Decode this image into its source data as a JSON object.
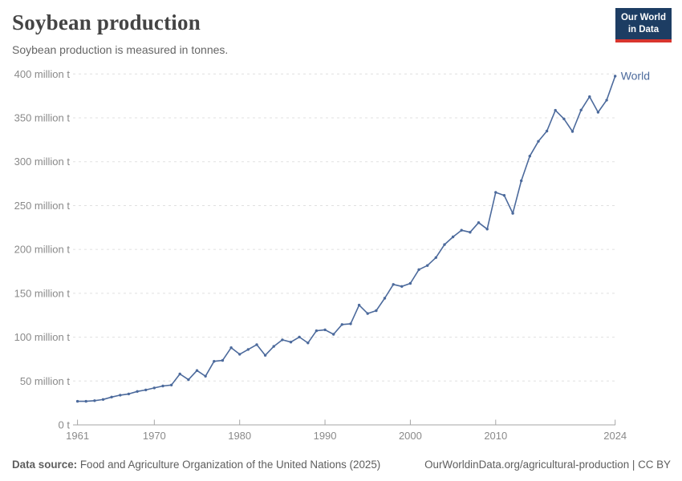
{
  "header": {
    "title": "Soybean production",
    "subtitle": "Soybean production is measured in tonnes.",
    "logo": {
      "line1": "Our World",
      "line2": "in Data"
    }
  },
  "footer": {
    "source_label": "Data source:",
    "source_text": " Food and Agriculture Organization of the United Nations (2025)",
    "link_text": "OurWorldinData.org/agricultural-production | CC BY"
  },
  "colors": {
    "series_blue": "#4C6A9C",
    "grid": "#e0e0e0",
    "axis": "#a6a6a6",
    "tick_text": "#8a8a8a",
    "logo_navy": "#1d3d63",
    "logo_red": "#d8352e"
  },
  "chart_data": {
    "type": "line",
    "title": "Soybean production",
    "subtitle": "Soybean production is measured in tonnes.",
    "xlabel": "",
    "ylabel": "",
    "values_unit": "million tonnes",
    "xlim": [
      1961,
      2024
    ],
    "ylim": [
      0,
      400
    ],
    "grid": "horizontal-dashed",
    "legend_position": "end-of-line-label",
    "x_ticks": [
      1961,
      1970,
      1980,
      1990,
      2000,
      2010,
      2024
    ],
    "y_ticks": [
      0,
      50,
      100,
      150,
      200,
      250,
      300,
      350,
      400
    ],
    "y_tick_labels": [
      "0 t",
      "50 million t",
      "100 million t",
      "150 million t",
      "200 million t",
      "250 million t",
      "300 million t",
      "350 million t",
      "400 million t"
    ],
    "x": [
      1961,
      1962,
      1963,
      1964,
      1965,
      1966,
      1967,
      1968,
      1969,
      1970,
      1971,
      1972,
      1973,
      1974,
      1975,
      1976,
      1977,
      1978,
      1979,
      1980,
      1981,
      1982,
      1983,
      1984,
      1985,
      1986,
      1987,
      1988,
      1989,
      1990,
      1991,
      1992,
      1993,
      1994,
      1995,
      1996,
      1997,
      1998,
      1999,
      2000,
      2001,
      2002,
      2003,
      2004,
      2005,
      2006,
      2007,
      2008,
      2009,
      2010,
      2011,
      2012,
      2013,
      2014,
      2015,
      2016,
      2017,
      2018,
      2019,
      2020,
      2021,
      2022,
      2023,
      2024
    ],
    "series": [
      {
        "name": "World",
        "color": "#4C6A9C",
        "values": [
          26.9,
          26.9,
          27.6,
          29.0,
          31.7,
          33.9,
          35.3,
          38.1,
          39.8,
          42.1,
          44.3,
          45.4,
          58.0,
          51.5,
          62.0,
          55.5,
          72.5,
          73.5,
          88.0,
          80.5,
          86.0,
          91.5,
          79.3,
          89.5,
          97.0,
          94.4,
          100.2,
          93.4,
          107.3,
          108.4,
          103.3,
          114.4,
          115.2,
          136.5,
          126.9,
          130.2,
          144.4,
          160.1,
          157.8,
          161.3,
          177.0,
          181.7,
          190.7,
          205.5,
          214.3,
          221.9,
          219.6,
          230.6,
          223.2,
          265.0,
          261.6,
          241.2,
          278.3,
          306.4,
          323.2,
          334.9,
          358.6,
          348.8,
          334.5,
          358.9,
          374.1,
          356.4,
          370.2,
          397.5
        ]
      }
    ]
  }
}
